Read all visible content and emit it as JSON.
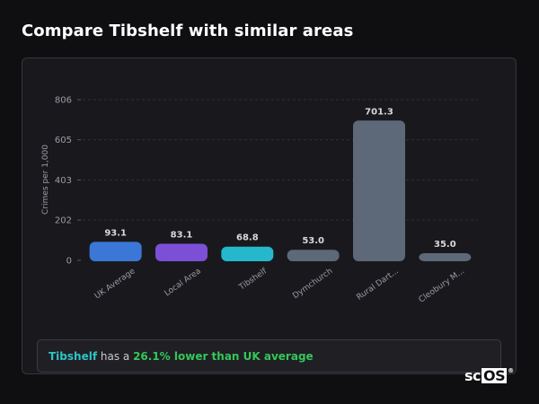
{
  "header": {
    "title": "Compare Tibshelf with similar areas"
  },
  "colors": {
    "uk_average": "#3b77d6",
    "local_area": "#7b4fd6",
    "tibshelf": "#25b8cc",
    "other": "#5d6878",
    "highlight_name": "#2ec4c4",
    "highlight_pct": "#34c759"
  },
  "chart_data": {
    "type": "bar",
    "title": "",
    "xlabel": "",
    "ylabel": "Crimes per 1,000",
    "ylim": [
      0,
      806
    ],
    "yticks": [
      "0",
      "202",
      "403",
      "605",
      "806"
    ],
    "categories": [
      "UK Average",
      "Local Area",
      "Tibshelf",
      "Dymchurch",
      "Rural Dart...",
      "Cleobury M..."
    ],
    "values": [
      93.1,
      83.1,
      68.8,
      53.0,
      701.3,
      35.0
    ],
    "value_labels": [
      "93.1",
      "83.1",
      "68.8",
      "53.0",
      "701.3",
      "35.0"
    ],
    "bar_colors": [
      "#3b77d6",
      "#7b4fd6",
      "#25b8cc",
      "#5d6878",
      "#5d6878",
      "#5d6878"
    ],
    "grid": true,
    "legend": "none"
  },
  "summary": {
    "area": "Tibshelf",
    "middle": " has a ",
    "comparison": "26.1% lower than UK average"
  },
  "logo": {
    "prefix": "sc",
    "box": "OS",
    "mark": "®"
  }
}
